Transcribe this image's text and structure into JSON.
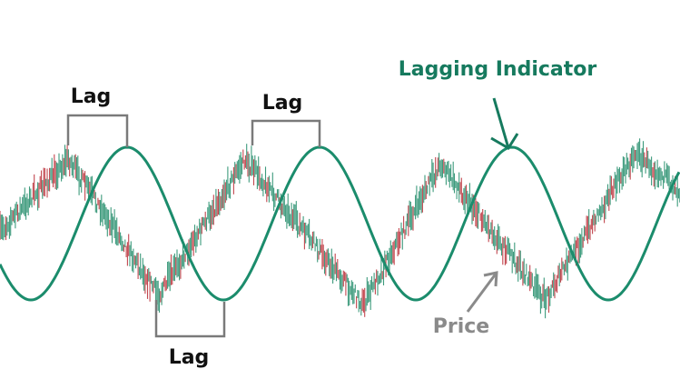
{
  "labels": {
    "indicator": "Lagging Indicator",
    "price": "Price",
    "lag_top_left": "Lag",
    "lag_top_middle": "Lag",
    "lag_bottom": "Lag"
  },
  "colors": {
    "indicator": "#1b8c6c",
    "indicator_text": "#167a5e",
    "price_up": "#3d9a7c",
    "price_down": "#c2474f",
    "price_text": "#8a8a8a",
    "lag_text": "#111111",
    "bracket": "#7a7a7a"
  }
}
